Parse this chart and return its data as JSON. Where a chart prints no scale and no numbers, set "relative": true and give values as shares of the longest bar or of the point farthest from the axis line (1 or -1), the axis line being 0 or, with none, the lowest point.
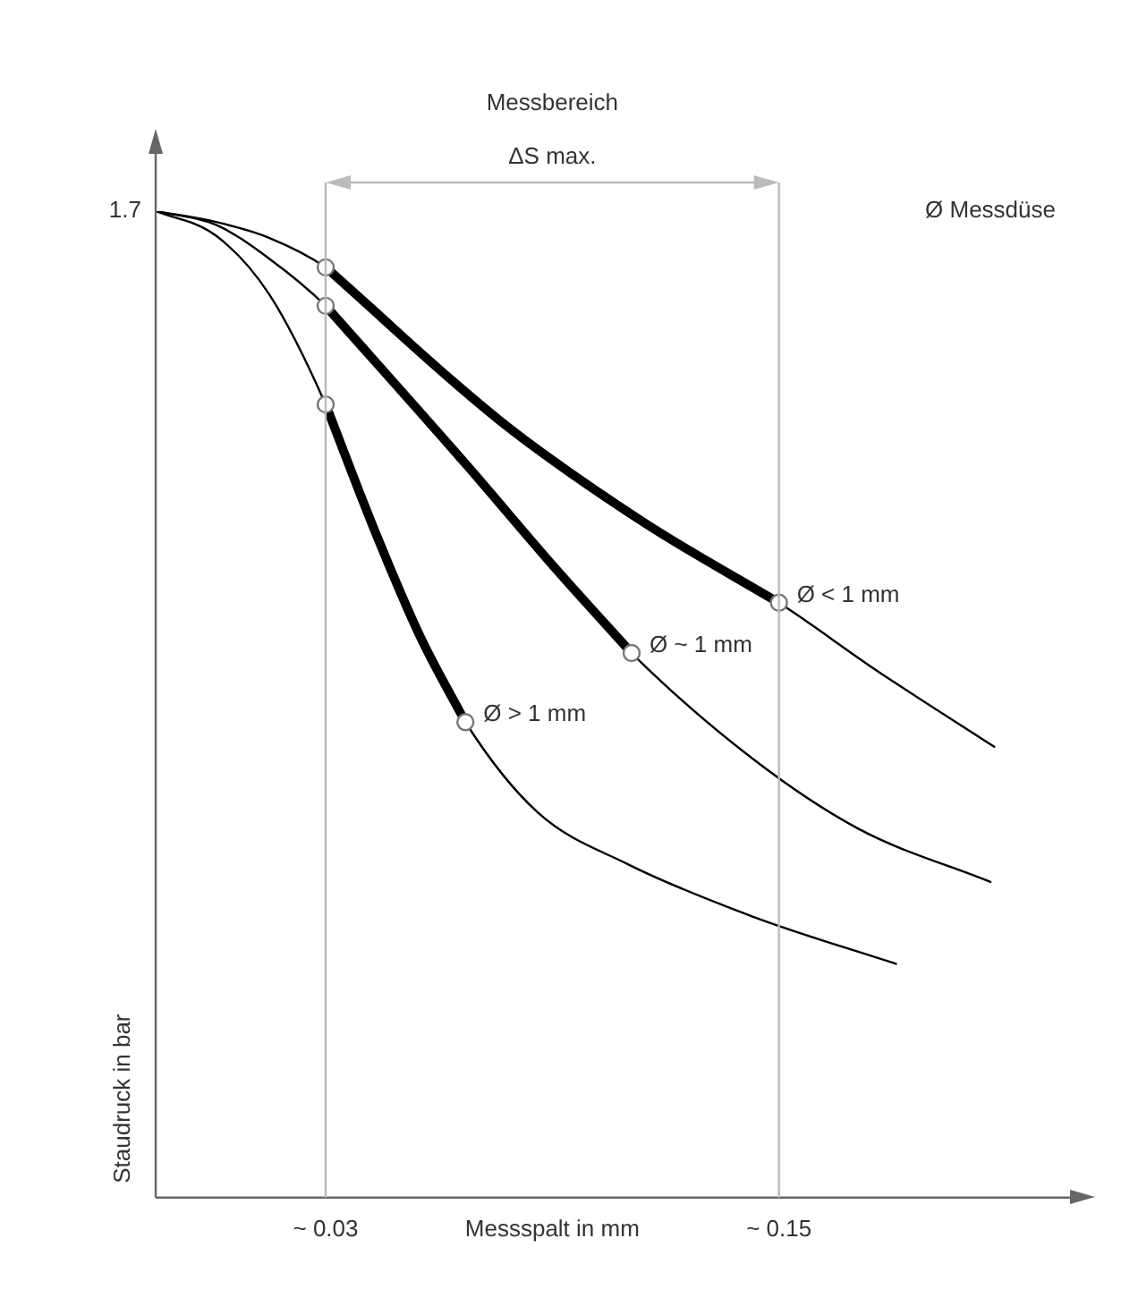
{
  "chart_data": {
    "type": "line",
    "relative": true,
    "xlabel": "Messspalt in mm",
    "ylabel": "Staudruck in bar",
    "xlim": [
      -0.015,
      0.228
    ],
    "xticks": [
      {
        "value": 0.03,
        "label": "~ 0.03"
      },
      {
        "value": 0.15,
        "label": "~ 0.15"
      }
    ],
    "ref_lines": [
      {
        "axis": "x",
        "value": 0.03,
        "color": "#bbbbbb"
      },
      {
        "axis": "x",
        "value": 0.15,
        "color": "#bbbbbb"
      }
    ],
    "annotations": [
      "Messbereich",
      "ΔS max.",
      "Ø Messdüse",
      {
        "text": "1.7",
        "x": -0.015,
        "y": 1
      }
    ],
    "series": [
      {
        "marker": "none",
        "color": "#000000",
        "x": [
          -0.015,
          0.001,
          0.015,
          0.03,
          0.076,
          0.114,
          0.15,
          0.176,
          0.207
        ],
        "values": [
          1,
          0.989,
          0.973,
          0.943,
          0.788,
          0.685,
          0.603,
          0.534,
          0.457
        ]
      },
      {
        "marker": "none",
        "color": "#000000",
        "x": [
          -0.015,
          0.001,
          0.015,
          0.03,
          0.067,
          0.091,
          0.111,
          0.143,
          0.171,
          0.206
        ],
        "values": [
          1,
          0.986,
          0.952,
          0.904,
          0.744,
          0.637,
          0.552,
          0.445,
          0.374,
          0.32
        ]
      },
      {
        "marker": "none",
        "color": "#000000",
        "x": [
          -0.015,
          0.001,
          0.015,
          0.03,
          0.043,
          0.055,
          0.067,
          0.086,
          0.11,
          0.143,
          0.181
        ],
        "values": [
          1,
          0.975,
          0.916,
          0.804,
          0.676,
          0.569,
          0.482,
          0.391,
          0.338,
          0.285,
          0.237
        ]
      },
      {
        "marker": "none",
        "name": "Ø < 1 mm",
        "color": "#000000",
        "x": [
          0.03,
          0.076,
          0.114,
          0.15
        ],
        "values": [
          0.943,
          0.788,
          0.685,
          0.603
        ]
      },
      {
        "marker": "none",
        "name": "Ø ~ 1 mm",
        "color": "#000000",
        "x": [
          0.03,
          0.067,
          0.091,
          0.111
        ],
        "values": [
          0.904,
          0.744,
          0.637,
          0.552
        ]
      },
      {
        "marker": "none",
        "name": "Ø > 1 mm",
        "color": "#000000",
        "x": [
          0.03,
          0.043,
          0.055,
          0.067
        ],
        "values": [
          0.804,
          0.676,
          0.569,
          0.482
        ]
      },
      {
        "type": "scatter",
        "marker": "circle",
        "color": "#777777",
        "x": [
          0.03,
          0.15,
          0.03,
          0.111,
          0.03,
          0.067
        ],
        "values": [
          0.943,
          0.603,
          0.904,
          0.552,
          0.804,
          0.482
        ]
      }
    ]
  }
}
